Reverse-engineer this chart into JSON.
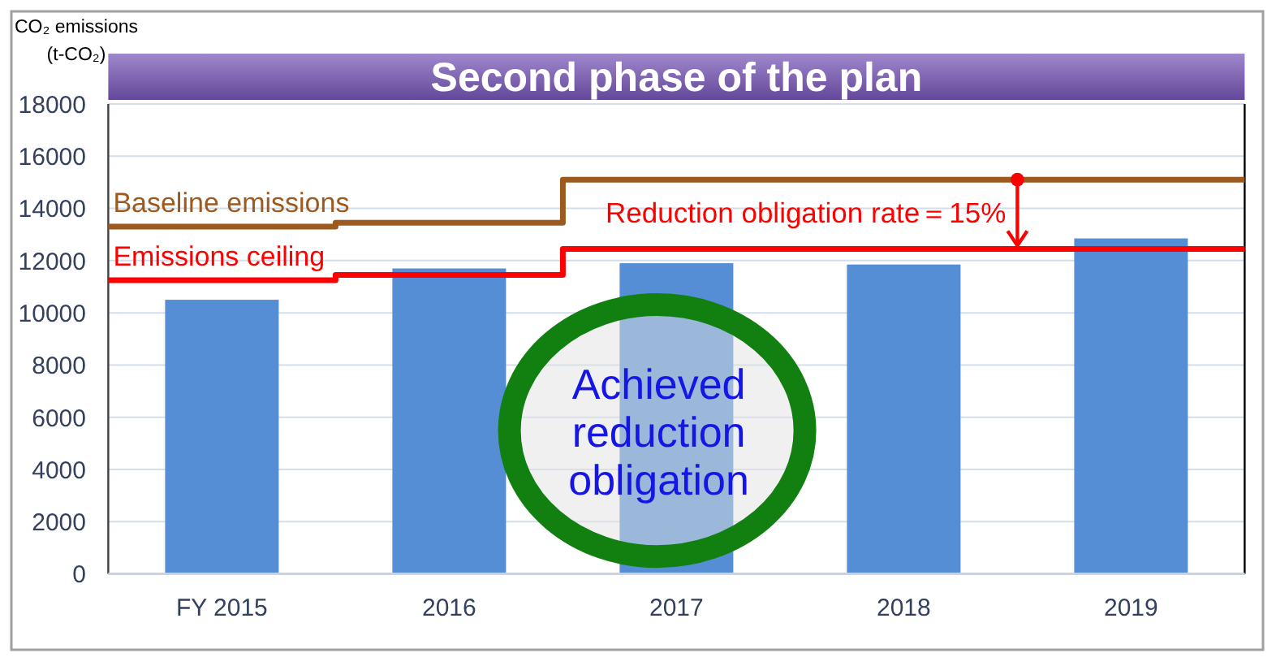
{
  "chart_data": {
    "type": "bar",
    "title": "Second phase of the plan",
    "ylabel": "CO₂ emissions\n(t-CO₂)",
    "x": [
      2015,
      2016,
      2017,
      2018,
      2019
    ],
    "series": [
      {
        "color": "#558ed5",
        "values": [
          10500,
          11700,
          11900,
          11850,
          12850
        ]
      },
      {
        "type": "line",
        "name": "Baseline emissions",
        "color": "#9c5a1e",
        "x": [
          2014.5,
          2015.5,
          2015.5,
          2016.5,
          2016.5,
          2019.5
        ],
        "values": [
          13300,
          13300,
          13450,
          13450,
          15100,
          15100
        ]
      },
      {
        "type": "line",
        "name": "Emissions ceiling",
        "color": "#ff0000",
        "x": [
          2014.5,
          2015.5,
          2015.5,
          2016.5,
          2016.5,
          2019.5
        ],
        "values": [
          11250,
          11250,
          11450,
          11450,
          12450,
          12450
        ]
      }
    ],
    "xlim": [
      2014.5,
      2019.5
    ],
    "xticks": [
      {
        "value": 2015,
        "label": "FY 2015"
      },
      2016,
      2017,
      2018,
      2019
    ],
    "ylim": [
      0,
      18000
    ],
    "yticks": [
      0,
      2000,
      4000,
      6000,
      8000,
      10000,
      12000,
      14000,
      16000,
      18000
    ],
    "grid": "y",
    "annotations": [
      "Reduction obligation rate＝15%",
      "Achieved\nreduction\nobligation"
    ]
  }
}
